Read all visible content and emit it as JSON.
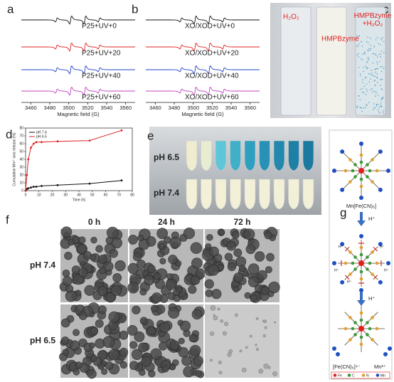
{
  "panels": {
    "a": {
      "label": "a",
      "traces": [
        "P25+UV+0",
        "P25+UV+20",
        "P25+UV+40",
        "P25+UV+60"
      ],
      "xlabel": "Magnetic field (G)",
      "xlim": [
        3450,
        3570
      ],
      "xticks": [
        3460,
        3480,
        3500,
        3520,
        3540,
        3560
      ]
    },
    "b": {
      "label": "b",
      "traces": [
        "XO/XOD+UV+0",
        "XO/XOD+UV+20",
        "XO/XOD+UV+40",
        "XO/XOD+UV+60"
      ],
      "xlabel": "Magnetic field (G)",
      "xlim": [
        3450,
        3570
      ],
      "xticks": [
        3460,
        3480,
        3500,
        3520,
        3540,
        3560
      ]
    },
    "c": {
      "label": "c",
      "vials": [
        "H₂O₂",
        "HMPBzyme",
        "HMPBzyme\n+H₂O₂"
      ]
    },
    "d": {
      "label": "d",
      "type": "line",
      "ylabel": "Cumulative Mn²⁺ ions release (%)",
      "xlabel": "Time (h)",
      "x": [
        0,
        1,
        2,
        4,
        6,
        8,
        12,
        24,
        48,
        72
      ],
      "series": [
        {
          "name": "pH 7.4",
          "color": "#111111",
          "values": [
            0,
            2,
            3,
            4,
            5,
            5,
            6,
            7,
            9,
            13
          ]
        },
        {
          "name": "pH 6.5",
          "color": "#e02020",
          "values": [
            0,
            20,
            40,
            55,
            60,
            62,
            62,
            63,
            64,
            77
          ]
        }
      ],
      "xlim": [
        0,
        80
      ],
      "xticks": [
        0,
        10,
        20,
        30,
        40,
        50,
        60,
        70,
        80
      ],
      "ylim": [
        0,
        80
      ],
      "yticks": [
        0,
        10,
        20,
        30,
        40,
        50,
        60,
        70,
        80
      ]
    },
    "e": {
      "label": "e",
      "rows": [
        "pH 6.5",
        "pH 7.4"
      ]
    },
    "f": {
      "label": "f",
      "columns": [
        "0 h",
        "24 h",
        "72 h"
      ],
      "rows": [
        "pH 7.4",
        "pH 6.5"
      ]
    },
    "g": {
      "label": "g",
      "start": "Mn[Fe(CN)₆]",
      "step1": "H⁺",
      "step2": "H⁺",
      "proton": "H⁺",
      "product1": "[Fe(CN)₆]⁴⁻",
      "product2": "Mn²⁺",
      "legend": [
        "Fe",
        "C",
        "N",
        "Mn"
      ]
    }
  }
}
